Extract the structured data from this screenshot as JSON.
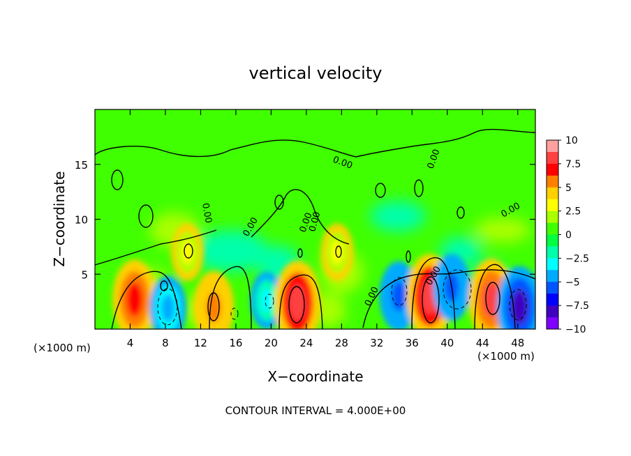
{
  "chart_data": {
    "type": "heatmap",
    "title": "vertical velocity",
    "xlabel": "X−coordinate",
    "ylabel": "Z−coordinate",
    "x_unit_left": "(×1000 m)",
    "x_unit_right": "(×1000 m)",
    "footer": "CONTOUR INTERVAL = 4.000E+00",
    "xlim": [
      0,
      50
    ],
    "ylim": [
      0,
      20
    ],
    "xticks": [
      4,
      8,
      12,
      16,
      20,
      24,
      28,
      32,
      36,
      40,
      44,
      48
    ],
    "xtick_labels": [
      "4",
      "8",
      "12",
      "16",
      "20",
      "24",
      "28",
      "32",
      "36",
      "40",
      "44",
      "48"
    ],
    "yticks": [
      5,
      10,
      15
    ],
    "ytick_labels": [
      "5",
      "10",
      "15"
    ],
    "colorbar": {
      "range": [
        -10,
        10
      ],
      "ticks": [
        10,
        7.5,
        5,
        2.5,
        0,
        -2.5,
        -5,
        -7.5,
        -10
      ],
      "tick_labels": [
        "10",
        "7.5",
        "5",
        "2.5",
        "0",
        "−2.5",
        "−5",
        "−7.5",
        "−10"
      ],
      "colors": [
        "#ffa0a0",
        "#ff4040",
        "#ff0000",
        "#ff7f00",
        "#ffd000",
        "#ffff00",
        "#aaff00",
        "#40ff00",
        "#00ff40",
        "#00ffaa",
        "#00ffff",
        "#00aaff",
        "#0055ff",
        "#0000ff",
        "#4000c0",
        "#8000ff"
      ]
    },
    "contour_labels": [
      "0.00",
      "0.00",
      "0.00",
      "0.00",
      "0.00",
      "0.00",
      "0.00",
      "0.00",
      "0.00"
    ],
    "cells": [
      {
        "x": 4.5,
        "z": 2.7,
        "value": 7.5
      },
      {
        "x": 8.3,
        "z": 1.9,
        "value": -4.5
      },
      {
        "x": 13.5,
        "z": 2.0,
        "value": 6.0
      },
      {
        "x": 10.5,
        "z": 7.0,
        "value": 3.0
      },
      {
        "x": 19.5,
        "z": 2.6,
        "value": -3.0
      },
      {
        "x": 23.0,
        "z": 2.4,
        "value": 8.5
      },
      {
        "x": 27.5,
        "z": 7.0,
        "value": 3.0
      },
      {
        "x": 34.5,
        "z": 3.0,
        "value": -5.5
      },
      {
        "x": 38.0,
        "z": 3.0,
        "value": 8.5
      },
      {
        "x": 40.5,
        "z": 3.8,
        "value": -5.0
      },
      {
        "x": 45.0,
        "z": 2.7,
        "value": 8.0
      },
      {
        "x": 48.2,
        "z": 2.0,
        "value": -8.0
      }
    ]
  }
}
